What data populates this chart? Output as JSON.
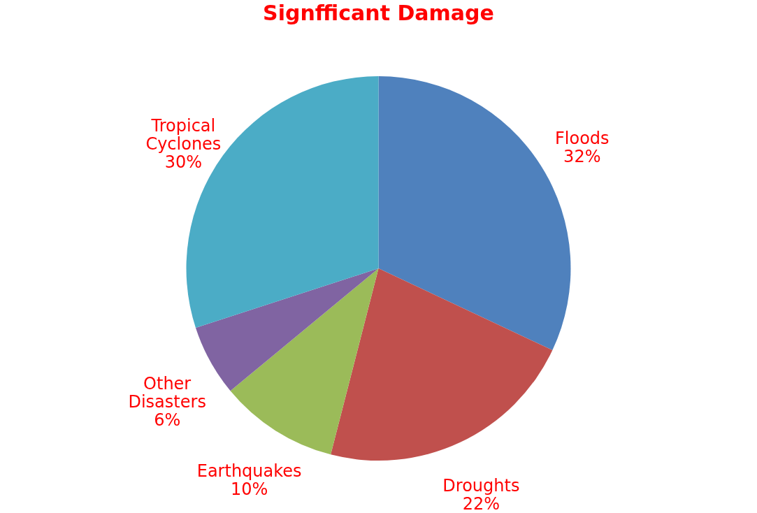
{
  "chart_data": {
    "type": "pie",
    "title": "Signfficant Damage",
    "categories": [
      "Floods",
      "Droughts",
      "Earthquakes",
      "Other Disasters",
      "Tropical Cyclones"
    ],
    "values": [
      32,
      22,
      10,
      6,
      30
    ],
    "colors": [
      "#4f81bd",
      "#c0504d",
      "#9bbb59",
      "#8064a2",
      "#4bacc6"
    ],
    "value_labels": [
      "32%",
      "22%",
      "10%",
      "6%",
      "30%"
    ],
    "legend": false
  }
}
